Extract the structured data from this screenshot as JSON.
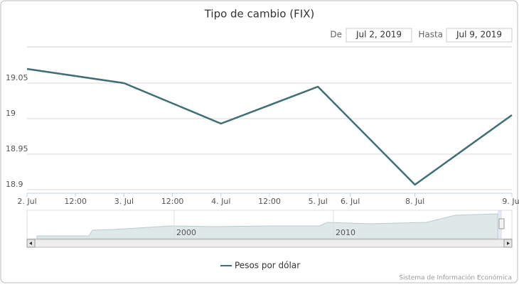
{
  "chart_data": {
    "type": "line",
    "ordinal": true,
    "title": "Tipo de cambio (FIX)",
    "range_selector": {
      "from_label": "De",
      "from": "Jul 2, 2019",
      "to_label": "Hasta",
      "to": "Jul 9, 2019"
    },
    "x": [
      2,
      3,
      4,
      5,
      8,
      9
    ],
    "series": [
      {
        "name": "Pesos por dólar",
        "color": "#3f6f74",
        "values": [
          19.07,
          19.05,
          18.993,
          19.045,
          18.907,
          19.005
        ]
      }
    ],
    "xlim": [
      2,
      9
    ],
    "xticks": [
      {
        "value": 2,
        "label": "2. Jul"
      },
      {
        "value": 2.5,
        "label": "12:00"
      },
      {
        "value": 3,
        "label": "3. Jul"
      },
      {
        "value": 3.5,
        "label": "12:00"
      },
      {
        "value": 4,
        "label": "4. Jul"
      },
      {
        "value": 4.5,
        "label": "12:00"
      },
      {
        "value": 5,
        "label": "5. Jul"
      },
      {
        "value": 6,
        "label": "6. Jul"
      },
      {
        "value": 8,
        "label": "8. Jul"
      },
      {
        "value": 9,
        "label": "9. Jul"
      }
    ],
    "ylim": [
      18.9,
      19.1
    ],
    "yticks": [
      18.9,
      18.95,
      19,
      19.05
    ],
    "grid": true,
    "navigator_ticks": [
      2000,
      2010
    ],
    "credits": "Sistema de Información Económica"
  }
}
